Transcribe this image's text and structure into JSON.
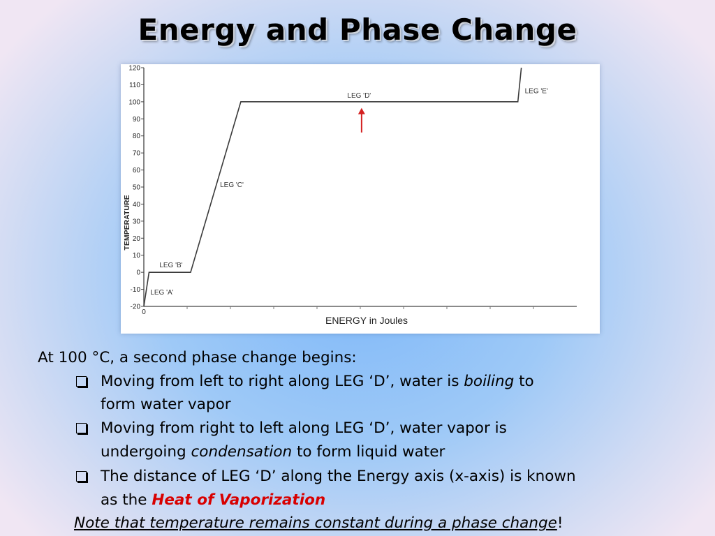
{
  "title": "Energy and Phase Change",
  "chart_data": {
    "type": "line",
    "title": "",
    "xlabel": "ENERGY in Joules",
    "ylabel": "TEMPERATURE",
    "x_tick_labels": [
      "0"
    ],
    "y_ticks": [
      -20,
      -10,
      0,
      10,
      20,
      30,
      40,
      50,
      60,
      70,
      80,
      90,
      100,
      110,
      120
    ],
    "ylim": [
      -20,
      120
    ],
    "xlim": [
      0,
      100
    ],
    "x_minor_ticks": [
      10,
      20,
      30,
      40,
      50,
      60,
      70,
      80,
      90
    ],
    "grid": false,
    "series": [
      {
        "values_x": [
          0,
          1.2,
          10.8,
          22.4,
          86.4,
          87.2
        ],
        "values_y": [
          -20,
          0,
          0,
          100,
          100,
          120
        ]
      }
    ],
    "annotations": [
      {
        "text": "LEG 'A'",
        "x": 1.5,
        "y": -13
      },
      {
        "text": "LEG 'B'",
        "x": 3.6,
        "y": 3
      },
      {
        "text": "LEG 'C'",
        "x": 17.6,
        "y": 50
      },
      {
        "text": "LEG 'D'",
        "x": 47,
        "y": 102.5
      },
      {
        "text": "LEG 'E'",
        "x": 88,
        "y": 105
      }
    ],
    "arrow": {
      "x": 50.3,
      "y_from": 82,
      "y_to": 96,
      "color": "#d42020"
    }
  },
  "body": {
    "intro_pre": "At 100 ",
    "degree": "°",
    "intro_post": "C, a second phase change begins:",
    "bullet1_pre": "Moving from left to right along LEG ‘D’, water is ",
    "bullet1_em": "boiling",
    "bullet1_post": " to",
    "bullet1_line2": "form water vapor",
    "bullet2_line1": "Moving from right to left along LEG ‘D’, water vapor is",
    "bullet2_pre": "undergoing ",
    "bullet2_em": "condensation",
    "bullet2_post": " to form liquid water",
    "bullet3_line1": "The distance of LEG ‘D’ along the Energy axis (x-axis) is known",
    "bullet3_pre": "as the ",
    "bullet3_highlight": "Heat of Vaporization",
    "note": "Note that temperature remains constant during a phase change",
    "note_end": "!"
  },
  "colors": {
    "highlight": "#d80000",
    "arrow": "#d42020",
    "curve": "#3a3a3a"
  }
}
